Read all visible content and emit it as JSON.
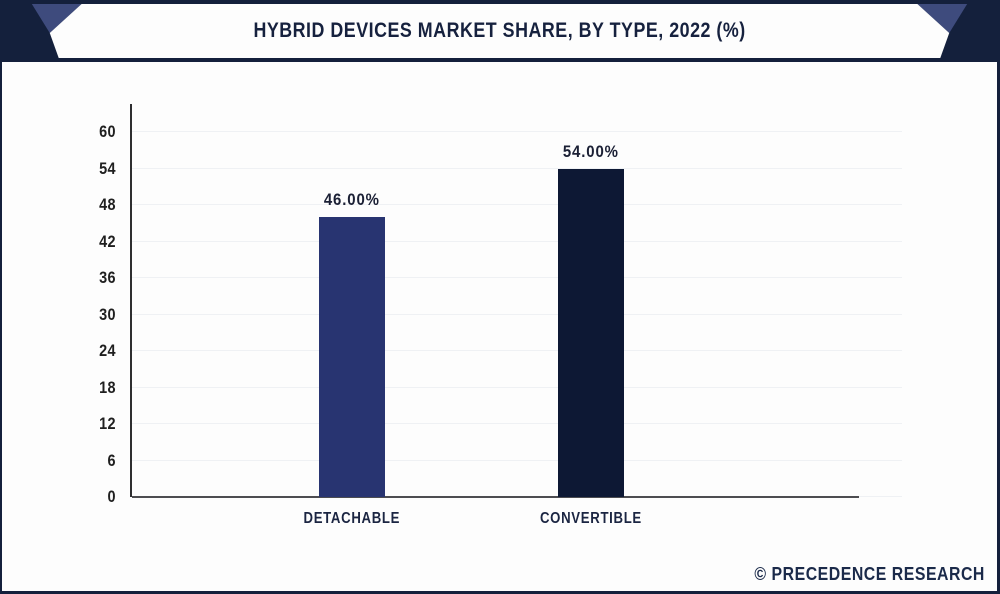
{
  "header": {
    "title": "HYBRID DEVICES MARKET SHARE, BY TYPE, 2022 (%)"
  },
  "footer": {
    "credit": "© PRECEDENCE RESEARCH"
  },
  "colors": {
    "header_bg": "#14203C",
    "header_accent": "#3E4B7D",
    "header_panel": "#FDFDFD",
    "title_text": "#16213E",
    "gridline": "#EFF1F4",
    "x_axis": "#4D4D51",
    "y_axis": "#2E2E30",
    "tick_text": "#1F1F1F",
    "category_text": "#1B2542",
    "value_text": "#1B2035",
    "watermark_text": "#1B2A4A"
  },
  "chart_data": {
    "type": "bar",
    "title": "HYBRID DEVICES MARKET SHARE, BY TYPE, 2022 (%)",
    "categories": [
      "DETACHABLE",
      "CONVERTIBLE"
    ],
    "values": [
      46,
      54
    ],
    "value_labels": [
      "46.00%",
      "54.00%"
    ],
    "bar_colors": [
      "#283471",
      "#0D1834"
    ],
    "xlabel": "",
    "ylabel": "",
    "ylim": [
      0,
      60
    ],
    "ytick_step": 6,
    "yticks": [
      0,
      6,
      12,
      18,
      24,
      30,
      36,
      42,
      48,
      54,
      60
    ],
    "grid": "horizontal",
    "legend": "none"
  }
}
